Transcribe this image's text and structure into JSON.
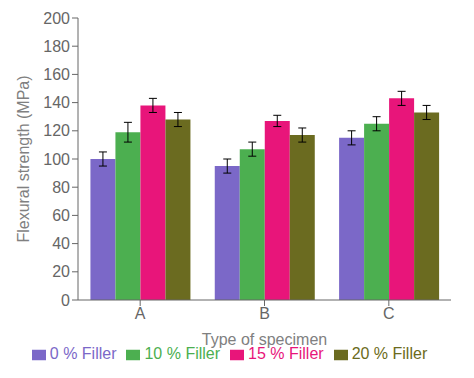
{
  "chart_data": {
    "type": "bar",
    "categories": [
      "A",
      "B",
      "C"
    ],
    "series": [
      {
        "name": "0 % Filler",
        "color": "#7B68C8",
        "values": [
          100,
          95,
          115
        ],
        "errors": [
          5,
          5,
          5
        ]
      },
      {
        "name": "10 % Filler",
        "color": "#4CAF50",
        "values": [
          119,
          107,
          125
        ],
        "errors": [
          7,
          5,
          5
        ]
      },
      {
        "name": "15 % Filler",
        "color": "#E8157A",
        "values": [
          138,
          127,
          143
        ],
        "errors": [
          5,
          4,
          5
        ]
      },
      {
        "name": "20 % Filler",
        "color": "#6B6B20",
        "values": [
          128,
          117,
          133
        ],
        "errors": [
          5,
          5,
          5
        ]
      }
    ],
    "xlabel": "Type of specimen",
    "ylabel": "Flexural strength (MPa)",
    "ylim": [
      0,
      200
    ],
    "yticks": [
      0,
      20,
      40,
      60,
      80,
      100,
      120,
      140,
      160,
      180,
      200
    ],
    "grid": false,
    "legend": "bottom"
  }
}
